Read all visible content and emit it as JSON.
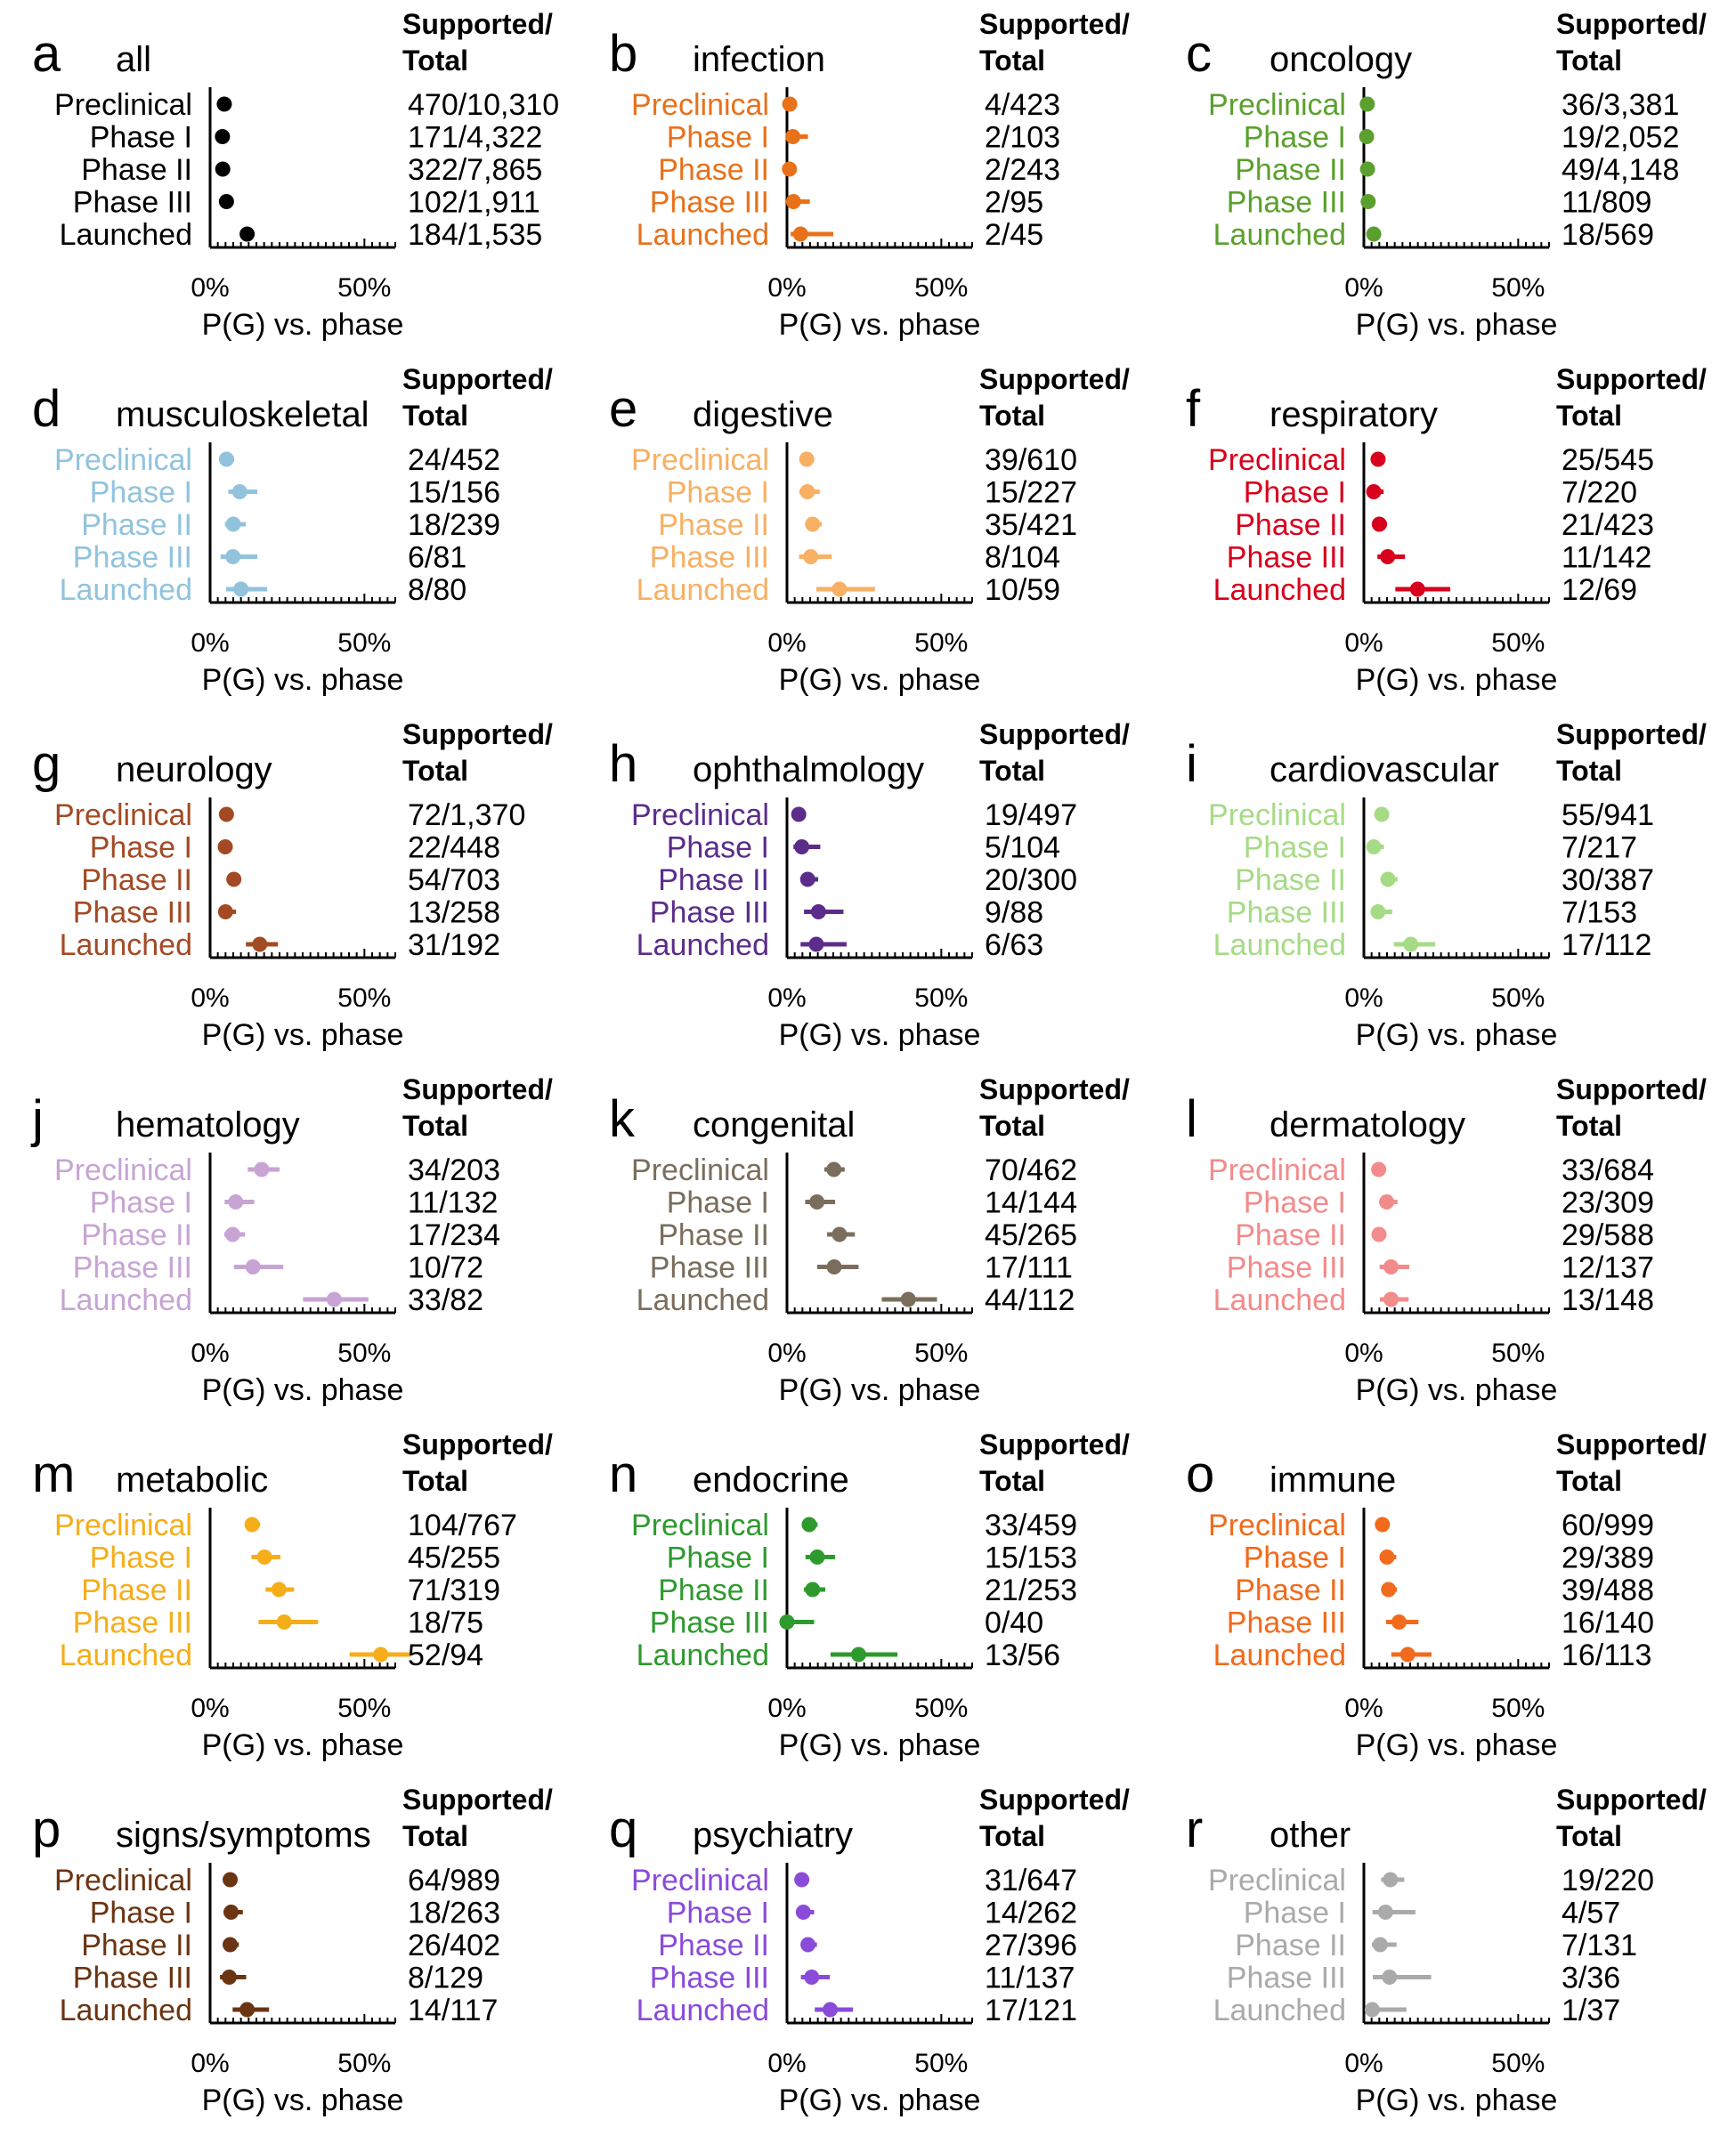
{
  "common": {
    "phases": [
      "Preclinical",
      "Phase I",
      "Phase II",
      "Phase III",
      "Launched"
    ],
    "header_line1": "Supported/",
    "header_line2": "Total",
    "x_tick_labels": [
      "0%",
      "50%"
    ],
    "x_axis_label": "P(G) vs. phase"
  },
  "chart_data": [
    {
      "panel": "a",
      "title": "all",
      "type": "scatter",
      "color": "#000000",
      "xlim": [
        0,
        0.6
      ],
      "x": [
        "Preclinical",
        "Phase I",
        "Phase II",
        "Phase III",
        "Launched"
      ],
      "counts": [
        "470/10,310",
        "171/4,322",
        "322/7,865",
        "102/1,911",
        "184/1,535"
      ],
      "values": [
        0.046,
        0.04,
        0.041,
        0.053,
        0.12
      ],
      "ci": [
        [
          0.042,
          0.05
        ],
        [
          0.034,
          0.046
        ],
        [
          0.037,
          0.045
        ],
        [
          0.044,
          0.062
        ],
        [
          0.104,
          0.137
        ]
      ]
    },
    {
      "panel": "b",
      "title": "infection",
      "type": "scatter",
      "color": "#E8711A",
      "xlim": [
        0,
        0.6
      ],
      "x": [
        "Preclinical",
        "Phase I",
        "Phase II",
        "Phase III",
        "Launched"
      ],
      "counts": [
        "4/423",
        "2/103",
        "2/243",
        "2/95",
        "2/45"
      ],
      "values": [
        0.009,
        0.019,
        0.008,
        0.021,
        0.044
      ],
      "ci": [
        [
          0.003,
          0.024
        ],
        [
          0.005,
          0.068
        ],
        [
          0.002,
          0.03
        ],
        [
          0.006,
          0.074
        ],
        [
          0.012,
          0.15
        ]
      ]
    },
    {
      "panel": "c",
      "title": "oncology",
      "type": "scatter",
      "color": "#5BA02E",
      "xlim": [
        0,
        0.6
      ],
      "x": [
        "Preclinical",
        "Phase I",
        "Phase II",
        "Phase III",
        "Launched"
      ],
      "counts": [
        "36/3,381",
        "19/2,052",
        "49/4,148",
        "11/809",
        "18/569"
      ],
      "values": [
        0.011,
        0.009,
        0.012,
        0.014,
        0.032
      ],
      "ci": [
        [
          0.008,
          0.015
        ],
        [
          0.006,
          0.014
        ],
        [
          0.009,
          0.016
        ],
        [
          0.008,
          0.024
        ],
        [
          0.02,
          0.05
        ]
      ]
    },
    {
      "panel": "d",
      "title": "musculoskeletal",
      "type": "scatter",
      "color": "#91C3DD",
      "xlim": [
        0,
        0.6
      ],
      "x": [
        "Preclinical",
        "Phase I",
        "Phase II",
        "Phase III",
        "Launched"
      ],
      "counts": [
        "24/452",
        "15/156",
        "18/239",
        "6/81",
        "8/80"
      ],
      "values": [
        0.053,
        0.096,
        0.075,
        0.074,
        0.1
      ],
      "ci": [
        [
          0.036,
          0.078
        ],
        [
          0.059,
          0.153
        ],
        [
          0.048,
          0.116
        ],
        [
          0.034,
          0.153
        ],
        [
          0.052,
          0.185
        ]
      ]
    },
    {
      "panel": "e",
      "title": "digestive",
      "type": "scatter",
      "color": "#F7B064",
      "xlim": [
        0,
        0.6
      ],
      "x": [
        "Preclinical",
        "Phase I",
        "Phase II",
        "Phase III",
        "Launched"
      ],
      "counts": [
        "39/610",
        "15/227",
        "35/421",
        "8/104",
        "10/59"
      ],
      "values": [
        0.064,
        0.066,
        0.083,
        0.077,
        0.17
      ],
      "ci": [
        [
          0.047,
          0.086
        ],
        [
          0.04,
          0.106
        ],
        [
          0.06,
          0.113
        ],
        [
          0.039,
          0.145
        ],
        [
          0.095,
          0.285
        ]
      ]
    },
    {
      "panel": "f",
      "title": "respiratory",
      "type": "scatter",
      "color": "#D7001D",
      "xlim": [
        0,
        0.6
      ],
      "x": [
        "Preclinical",
        "Phase I",
        "Phase II",
        "Phase III",
        "Launched"
      ],
      "counts": [
        "25/545",
        "7/220",
        "21/423",
        "11/142",
        "12/69"
      ],
      "values": [
        0.046,
        0.032,
        0.05,
        0.077,
        0.174
      ],
      "ci": [
        [
          0.031,
          0.067
        ],
        [
          0.016,
          0.064
        ],
        [
          0.033,
          0.075
        ],
        [
          0.044,
          0.133
        ],
        [
          0.102,
          0.28
        ]
      ]
    },
    {
      "panel": "g",
      "title": "neurology",
      "type": "scatter",
      "color": "#A34A24",
      "xlim": [
        0,
        0.6
      ],
      "x": [
        "Preclinical",
        "Phase I",
        "Phase II",
        "Phase III",
        "Launched"
      ],
      "counts": [
        "72/1,370",
        "22/448",
        "54/703",
        "13/258",
        "31/192"
      ],
      "values": [
        0.053,
        0.049,
        0.077,
        0.05,
        0.161
      ],
      "ci": [
        [
          0.042,
          0.066
        ],
        [
          0.033,
          0.073
        ],
        [
          0.059,
          0.099
        ],
        [
          0.03,
          0.084
        ],
        [
          0.116,
          0.22
        ]
      ]
    },
    {
      "panel": "h",
      "title": "ophthalmology",
      "type": "scatter",
      "color": "#5B2C8A",
      "xlim": [
        0,
        0.6
      ],
      "x": [
        "Preclinical",
        "Phase I",
        "Phase II",
        "Phase III",
        "Launched"
      ],
      "counts": [
        "19/497",
        "5/104",
        "20/300",
        "9/88",
        "6/63"
      ],
      "values": [
        0.038,
        0.048,
        0.067,
        0.102,
        0.095
      ],
      "ci": [
        [
          0.025,
          0.059
        ],
        [
          0.021,
          0.108
        ],
        [
          0.044,
          0.101
        ],
        [
          0.055,
          0.183
        ],
        [
          0.044,
          0.193
        ]
      ]
    },
    {
      "panel": "i",
      "title": "cardiovascular",
      "type": "scatter",
      "color": "#A6DB86",
      "xlim": [
        0,
        0.6
      ],
      "x": [
        "Preclinical",
        "Phase I",
        "Phase II",
        "Phase III",
        "Launched"
      ],
      "counts": [
        "55/941",
        "7/217",
        "30/387",
        "7/153",
        "17/112"
      ],
      "values": [
        0.058,
        0.032,
        0.078,
        0.046,
        0.152
      ],
      "ci": [
        [
          0.045,
          0.075
        ],
        [
          0.016,
          0.065
        ],
        [
          0.055,
          0.109
        ],
        [
          0.022,
          0.092
        ],
        [
          0.097,
          0.231
        ]
      ]
    },
    {
      "panel": "j",
      "title": "hematology",
      "type": "scatter",
      "color": "#C7A4D3",
      "xlim": [
        0,
        0.6
      ],
      "x": [
        "Preclinical",
        "Phase I",
        "Phase II",
        "Phase III",
        "Launched"
      ],
      "counts": [
        "34/203",
        "11/132",
        "17/234",
        "10/72",
        "33/82"
      ],
      "values": [
        0.167,
        0.083,
        0.073,
        0.139,
        0.402
      ],
      "ci": [
        [
          0.122,
          0.225
        ],
        [
          0.047,
          0.143
        ],
        [
          0.046,
          0.113
        ],
        [
          0.077,
          0.237
        ],
        [
          0.301,
          0.513
        ]
      ]
    },
    {
      "panel": "k",
      "title": "congenital",
      "type": "scatter",
      "color": "#7A6D5C",
      "xlim": [
        0,
        0.6
      ],
      "x": [
        "Preclinical",
        "Phase I",
        "Phase II",
        "Phase III",
        "Launched"
      ],
      "counts": [
        "70/462",
        "14/144",
        "45/265",
        "17/111",
        "44/112"
      ],
      "values": [
        0.152,
        0.097,
        0.17,
        0.153,
        0.393
      ],
      "ci": [
        [
          0.121,
          0.187
        ],
        [
          0.059,
          0.156
        ],
        [
          0.13,
          0.22
        ],
        [
          0.098,
          0.232
        ],
        [
          0.307,
          0.486
        ]
      ]
    },
    {
      "panel": "l",
      "title": "dermatology",
      "type": "scatter",
      "color": "#F28B8B",
      "xlim": [
        0,
        0.6
      ],
      "x": [
        "Preclinical",
        "Phase I",
        "Phase II",
        "Phase III",
        "Launched"
      ],
      "counts": [
        "33/684",
        "23/309",
        "29/588",
        "12/137",
        "13/148"
      ],
      "values": [
        0.048,
        0.074,
        0.049,
        0.088,
        0.088
      ],
      "ci": [
        [
          0.035,
          0.067
        ],
        [
          0.05,
          0.109
        ],
        [
          0.035,
          0.07
        ],
        [
          0.051,
          0.147
        ],
        [
          0.052,
          0.145
        ]
      ]
    },
    {
      "panel": "m",
      "title": "metabolic",
      "type": "scatter",
      "color": "#F5AE19",
      "xlim": [
        0,
        0.6
      ],
      "x": [
        "Preclinical",
        "Phase I",
        "Phase II",
        "Phase III",
        "Launched"
      ],
      "counts": [
        "104/767",
        "45/255",
        "71/319",
        "18/75",
        "52/94"
      ],
      "values": [
        0.136,
        0.176,
        0.223,
        0.24,
        0.553
      ],
      "ci": [
        [
          0.113,
          0.162
        ],
        [
          0.134,
          0.228
        ],
        [
          0.18,
          0.272
        ],
        [
          0.157,
          0.35
        ],
        [
          0.452,
          0.65
        ]
      ]
    },
    {
      "panel": "n",
      "title": "endocrine",
      "type": "scatter",
      "color": "#2E9A2E",
      "xlim": [
        0,
        0.6
      ],
      "x": [
        "Preclinical",
        "Phase I",
        "Phase II",
        "Phase III",
        "Launched"
      ],
      "counts": [
        "33/459",
        "15/153",
        "21/253",
        "0/40",
        "13/56"
      ],
      "values": [
        0.072,
        0.098,
        0.083,
        0.0,
        0.232
      ],
      "ci": [
        [
          0.052,
          0.099
        ],
        [
          0.06,
          0.156
        ],
        [
          0.055,
          0.124
        ],
        [
          0.0,
          0.088
        ],
        [
          0.141,
          0.358
        ]
      ]
    },
    {
      "panel": "o",
      "title": "immune",
      "type": "scatter",
      "color": "#F26A1B",
      "xlim": [
        0,
        0.6
      ],
      "x": [
        "Preclinical",
        "Phase I",
        "Phase II",
        "Phase III",
        "Launched"
      ],
      "counts": [
        "60/999",
        "29/389",
        "39/488",
        "16/140",
        "16/113"
      ],
      "values": [
        0.06,
        0.075,
        0.08,
        0.114,
        0.142
      ],
      "ci": [
        [
          0.047,
          0.077
        ],
        [
          0.052,
          0.105
        ],
        [
          0.059,
          0.107
        ],
        [
          0.072,
          0.177
        ],
        [
          0.089,
          0.219
        ]
      ]
    },
    {
      "panel": "p",
      "title": "signs/symptoms",
      "type": "scatter",
      "color": "#6B3412",
      "xlim": [
        0,
        0.6
      ],
      "x": [
        "Preclinical",
        "Phase I",
        "Phase II",
        "Phase III",
        "Launched"
      ],
      "counts": [
        "64/989",
        "18/263",
        "26/402",
        "8/129",
        "14/117"
      ],
      "values": [
        0.065,
        0.068,
        0.065,
        0.062,
        0.12
      ],
      "ci": [
        [
          0.051,
          0.082
        ],
        [
          0.044,
          0.106
        ],
        [
          0.044,
          0.093
        ],
        [
          0.032,
          0.117
        ],
        [
          0.073,
          0.191
        ]
      ]
    },
    {
      "panel": "q",
      "title": "psychiatry",
      "type": "scatter",
      "color": "#8A4BD9",
      "xlim": [
        0,
        0.6
      ],
      "x": [
        "Preclinical",
        "Phase I",
        "Phase II",
        "Phase III",
        "Launched"
      ],
      "counts": [
        "31/647",
        "14/262",
        "27/396",
        "11/137",
        "17/121"
      ],
      "values": [
        0.048,
        0.053,
        0.068,
        0.08,
        0.14
      ],
      "ci": [
        [
          0.034,
          0.067
        ],
        [
          0.032,
          0.088
        ],
        [
          0.047,
          0.097
        ],
        [
          0.045,
          0.139
        ],
        [
          0.09,
          0.214
        ]
      ]
    },
    {
      "panel": "r",
      "title": "other",
      "type": "scatter",
      "color": "#AAAAAA",
      "xlim": [
        0,
        0.6
      ],
      "x": [
        "Preclinical",
        "Phase I",
        "Phase II",
        "Phase III",
        "Launched"
      ],
      "counts": [
        "19/220",
        "4/57",
        "7/131",
        "3/36",
        "1/37"
      ],
      "values": [
        0.086,
        0.07,
        0.053,
        0.083,
        0.027
      ],
      "ci": [
        [
          0.056,
          0.131
        ],
        [
          0.028,
          0.167
        ],
        [
          0.026,
          0.106
        ],
        [
          0.029,
          0.218
        ],
        [
          0.005,
          0.138
        ]
      ]
    }
  ]
}
